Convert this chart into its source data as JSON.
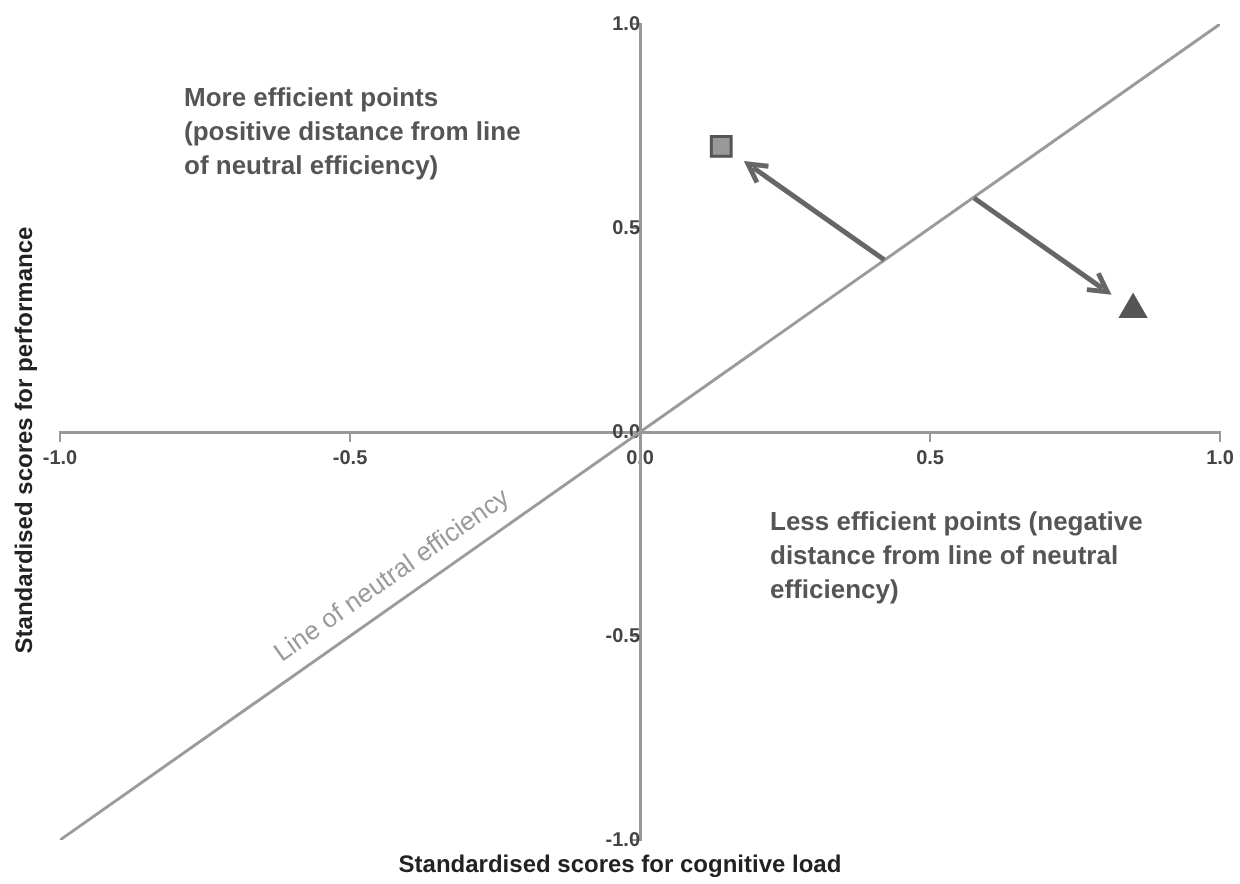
{
  "chart_data": {
    "type": "scatter",
    "xlabel": "Standardised scores for cognitive load",
    "ylabel": "Standardised scores for performance",
    "xlim": [
      -1,
      1
    ],
    "ylim": [
      -1,
      1
    ],
    "xticks": [
      {
        "value": -1,
        "label": "-1.0"
      },
      {
        "value": -0.5,
        "label": "-0.5"
      },
      {
        "value": 0,
        "label": "0.0"
      },
      {
        "value": 0.5,
        "label": "0.5"
      },
      {
        "value": 1,
        "label": "1.0"
      }
    ],
    "yticks": [
      {
        "value": -1,
        "label": "-1.0"
      },
      {
        "value": -0.5,
        "label": "-0.5"
      },
      {
        "value": 0,
        "label": "0.0"
      },
      {
        "value": 0.5,
        "label": "0.5"
      },
      {
        "value": 1,
        "label": "1.0"
      }
    ],
    "grid": false,
    "annotations": [
      "More efficient points (positive distance from line of neutral efficiency)",
      "Less efficient points (negative distance from line of neutral efficiency)"
    ],
    "series": [
      {
        "type": "line",
        "name": "Line of neutral efficiency",
        "color": "#9a9a9a",
        "x": [
          -1,
          1
        ],
        "values": [
          -1,
          1
        ],
        "marker": "none"
      },
      {
        "type": "scatter",
        "color": "#999999",
        "x": [
          0.14
        ],
        "values": [
          0.7
        ],
        "marker": "square"
      },
      {
        "type": "scatter",
        "color": "#555555",
        "x": [
          0.85
        ],
        "values": [
          0.3
        ],
        "marker": "triangle"
      }
    ]
  }
}
